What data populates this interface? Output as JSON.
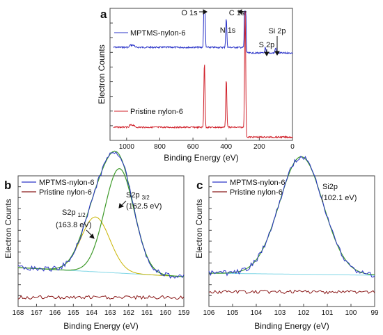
{
  "colors": {
    "blue": "#2b34c8",
    "red": "#d0202a",
    "darkred": "#8b1a1a",
    "green": "#3e9a2a",
    "yellow": "#c9b400",
    "cyan": "#7fd6e6"
  },
  "chart_data": [
    {
      "panel_letter": "a",
      "type": "line",
      "xlabel": "Binding Energy (eV)",
      "ylabel": "Electron Counts",
      "xlim": [
        1100,
        0
      ],
      "x_ticks": [
        "1000",
        "800",
        "600",
        "400",
        "200",
        "0"
      ],
      "series": [
        {
          "name": "MPTMS-nylon-6",
          "peaks": [
            {
              "x": 531,
              "height": 0.84
            },
            {
              "x": 399,
              "height": 0.22
            },
            {
              "x": 285,
              "height": 0.94
            },
            {
              "x": 164,
              "height": 0.04
            },
            {
              "x": 102,
              "height": 0.04
            }
          ]
        },
        {
          "name": "Pristine nylon-6",
          "peaks": [
            {
              "x": 531,
              "height": 0.5
            },
            {
              "x": 399,
              "height": 0.37
            },
            {
              "x": 285,
              "height": 0.96
            }
          ]
        }
      ],
      "annotations": [
        "O 1s",
        "N 1s",
        "C 1s",
        "S 2p",
        "Si 2p"
      ]
    },
    {
      "panel_letter": "b",
      "type": "line",
      "xlabel": "Binding Energy (eV)",
      "ylabel": "Electron Counts",
      "xlim": [
        168,
        159
      ],
      "x_ticks": [
        "168",
        "167",
        "166",
        "165",
        "164",
        "163",
        "162",
        "161",
        "160",
        "159"
      ],
      "series": [
        {
          "name": "MPTMS-nylon-6"
        },
        {
          "name": "Pristine nylon-6"
        }
      ],
      "fit_components": [
        {
          "center": 163.8,
          "height": 0.42,
          "sigma": 0.78
        },
        {
          "center": 162.5,
          "height": 0.8,
          "sigma": 0.8
        }
      ],
      "annotations": {
        "s2p12": {
          "main": "S2p",
          "sub": "1/2",
          "value": "(163.8 eV)"
        },
        "s2p32": {
          "main": "S2p",
          "sub": "3/2",
          "value": "(162.5 eV)"
        }
      }
    },
    {
      "panel_letter": "c",
      "type": "line",
      "xlabel": "Binding Energy (eV)",
      "ylabel": "Electron Counts",
      "xlim": [
        106,
        99
      ],
      "x_ticks": [
        "106",
        "105",
        "104",
        "103",
        "102",
        "101",
        "100",
        "99"
      ],
      "series": [
        {
          "name": "MPTMS-nylon-6"
        },
        {
          "name": "Pristine nylon-6"
        }
      ],
      "fit_components": [
        {
          "center": 102.1,
          "height": 0.9,
          "sigma": 0.92
        }
      ],
      "annotations": {
        "si2p": {
          "main": "Si2p",
          "value": "(102.1 eV)"
        }
      }
    }
  ]
}
